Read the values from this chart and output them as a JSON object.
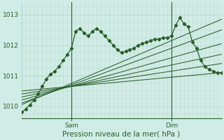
{
  "bg_color": "#d0ece6",
  "grid_color": "#b0d4cc",
  "grid_color_v": "#c0d8d0",
  "line_color": "#2a5e2a",
  "xlabel": "Pression niveau de la mer( hPa )",
  "ylim": [
    1009.6,
    1013.4
  ],
  "xlim": [
    0,
    96
  ],
  "yticks": [
    1010,
    1011,
    1012,
    1013
  ],
  "sam_x": 24,
  "dim_x": 72,
  "num_v_lines": 96,
  "main_series_x": [
    0,
    2,
    4,
    6,
    8,
    10,
    12,
    14,
    16,
    18,
    20,
    22,
    24,
    26,
    28,
    30,
    32,
    34,
    36,
    38,
    40,
    42,
    44,
    46,
    48,
    50,
    52,
    54,
    56,
    58,
    60,
    62,
    64,
    66,
    68,
    70,
    72,
    74,
    76,
    78,
    80,
    82,
    84,
    86,
    88,
    90,
    92,
    94,
    96
  ],
  "main_series_y": [
    1009.8,
    1009.9,
    1010.05,
    1010.2,
    1010.4,
    1010.65,
    1010.9,
    1011.05,
    1011.15,
    1011.3,
    1011.5,
    1011.7,
    1011.9,
    1012.45,
    1012.55,
    1012.4,
    1012.3,
    1012.45,
    1012.55,
    1012.45,
    1012.3,
    1012.15,
    1012.0,
    1011.85,
    1011.75,
    1011.8,
    1011.85,
    1011.9,
    1012.0,
    1012.05,
    1012.1,
    1012.15,
    1012.2,
    1012.2,
    1012.25,
    1012.25,
    1012.3,
    1012.65,
    1012.9,
    1012.7,
    1012.6,
    1012.1,
    1011.9,
    1011.5,
    1011.3,
    1011.2,
    1011.15,
    1011.1,
    1011.1
  ],
  "fan_lines": [
    {
      "x": [
        0,
        96
      ],
      "y": [
        1010.5,
        1011.1
      ]
    },
    {
      "x": [
        0,
        96
      ],
      "y": [
        1010.4,
        1011.4
      ]
    },
    {
      "x": [
        0,
        96
      ],
      "y": [
        1010.3,
        1011.7
      ]
    },
    {
      "x": [
        0,
        96
      ],
      "y": [
        1010.2,
        1012.05
      ]
    },
    {
      "x": [
        0,
        96
      ],
      "y": [
        1010.1,
        1012.5
      ]
    },
    {
      "x": [
        0,
        96
      ],
      "y": [
        1010.05,
        1012.85
      ]
    }
  ],
  "convergence_x": 24,
  "font_size_ticks": 6.5,
  "font_size_xlabel": 7.5
}
